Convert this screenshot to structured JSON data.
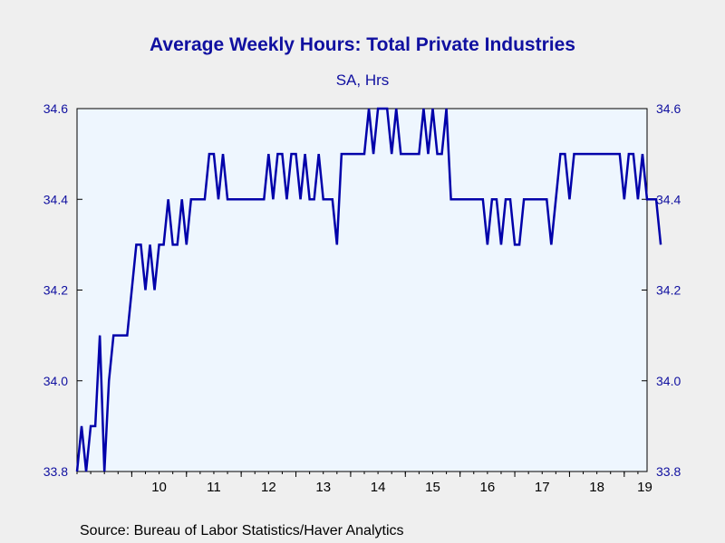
{
  "chart_data": {
    "type": "line",
    "title": "Average Weekly Hours: Total Private Industries",
    "subtitle": "SA, Hrs",
    "xlabel": "",
    "ylabel": "",
    "ylim": [
      33.8,
      34.6
    ],
    "yticks": [
      33.8,
      34.0,
      34.2,
      34.4,
      34.6
    ],
    "ytick_labels": [
      "33.8",
      "34.0",
      "34.2",
      "34.4",
      "34.6"
    ],
    "xlim": [
      2009.0,
      2019.417
    ],
    "xticks": [
      {
        "label": "10",
        "x": 2010.5
      },
      {
        "label": "11",
        "x": 2011.5
      },
      {
        "label": "12",
        "x": 2012.5
      },
      {
        "label": "13",
        "x": 2013.5
      },
      {
        "label": "14",
        "x": 2014.5
      },
      {
        "label": "15",
        "x": 2015.5
      },
      {
        "label": "16",
        "x": 2016.5
      },
      {
        "label": "17",
        "x": 2017.5
      },
      {
        "label": "18",
        "x": 2018.5
      },
      {
        "label": "19",
        "x": 2019.375
      }
    ],
    "year_boundaries": [
      2010,
      2011,
      2012,
      2013,
      2014,
      2015,
      2016,
      2017,
      2018,
      2019
    ],
    "grid": false,
    "right_axis": true,
    "background": "#eef6fe",
    "line_color": "#0000aa",
    "series": [
      {
        "start": "2009-01",
        "frequency": "monthly",
        "values": [
          33.8,
          33.9,
          33.8,
          33.9,
          33.9,
          34.1,
          33.8,
          34.0,
          34.1,
          34.1,
          34.1,
          34.1,
          34.2,
          34.3,
          34.3,
          34.2,
          34.3,
          34.2,
          34.3,
          34.3,
          34.4,
          34.3,
          34.3,
          34.4,
          34.3,
          34.4,
          34.4,
          34.4,
          34.4,
          34.5,
          34.5,
          34.4,
          34.5,
          34.4,
          34.4,
          34.4,
          34.4,
          34.4,
          34.4,
          34.4,
          34.4,
          34.4,
          34.5,
          34.4,
          34.5,
          34.5,
          34.4,
          34.5,
          34.5,
          34.4,
          34.5,
          34.4,
          34.4,
          34.5,
          34.4,
          34.4,
          34.4,
          34.3,
          34.5,
          34.5,
          34.5,
          34.5,
          34.5,
          34.5,
          34.6,
          34.5,
          34.6,
          34.6,
          34.6,
          34.5,
          34.6,
          34.5,
          34.5,
          34.5,
          34.5,
          34.5,
          34.6,
          34.5,
          34.6,
          34.5,
          34.5,
          34.6,
          34.4,
          34.4,
          34.4,
          34.4,
          34.4,
          34.4,
          34.4,
          34.4,
          34.3,
          34.4,
          34.4,
          34.3,
          34.4,
          34.4,
          34.3,
          34.3,
          34.4,
          34.4,
          34.4,
          34.4,
          34.4,
          34.4,
          34.3,
          34.4,
          34.5,
          34.5,
          34.4,
          34.5,
          34.5,
          34.5,
          34.5,
          34.5,
          34.5,
          34.5,
          34.5,
          34.5,
          34.5,
          34.5,
          34.4,
          34.5,
          34.5,
          34.4,
          34.5,
          34.4,
          34.4,
          34.4,
          34.3
        ]
      }
    ],
    "source": "Source:  Bureau of Labor Statistics/Haver Analytics"
  }
}
